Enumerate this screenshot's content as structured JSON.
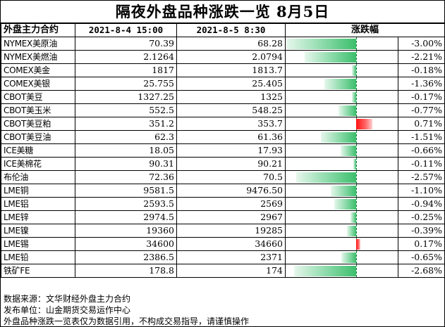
{
  "title": "隔夜外盘品种涨跌一览 8月5日",
  "headers": {
    "name": "外盘主力合约",
    "date1": "2021-8-4 15:00",
    "date2": "2021-8-5 8:30",
    "change": "涨跌幅"
  },
  "colors": {
    "negative_bar": "#3cbf6c",
    "positive_bar": "#ff1010"
  },
  "rows": [
    {
      "name": "NYMEX美原油",
      "prev": "70.39",
      "curr": "68.28",
      "pct": "-3.00%",
      "value": -3.0
    },
    {
      "name": "NYMEX美燃油",
      "prev": "2.1264",
      "curr": "2.0794",
      "pct": "-2.21%",
      "value": -2.21
    },
    {
      "name": "COMEX美金",
      "prev": "1817",
      "curr": "1813.7",
      "pct": "-0.18%",
      "value": -0.18
    },
    {
      "name": "COMEX美银",
      "prev": "25.755",
      "curr": "25.405",
      "pct": "-1.36%",
      "value": -1.36
    },
    {
      "name": "CBOT美豆",
      "prev": "1327.25",
      "curr": "1325",
      "pct": "-0.17%",
      "value": -0.17
    },
    {
      "name": "CBOT美玉米",
      "prev": "552.5",
      "curr": "548.25",
      "pct": "-0.77%",
      "value": -0.77
    },
    {
      "name": "CBOT美豆粕",
      "prev": "351.2",
      "curr": "353.7",
      "pct": "0.71%",
      "value": 0.71
    },
    {
      "name": "CBOT美豆油",
      "prev": "62.3",
      "curr": "61.36",
      "pct": "-1.51%",
      "value": -1.51
    },
    {
      "name": "ICE美糖",
      "prev": "18.05",
      "curr": "17.93",
      "pct": "-0.66%",
      "value": -0.66
    },
    {
      "name": "ICE美棉花",
      "prev": "90.31",
      "curr": "90.21",
      "pct": "-0.11%",
      "value": -0.11
    },
    {
      "name": "布伦油",
      "prev": "72.36",
      "curr": "70.5",
      "pct": "-2.57%",
      "value": -2.57
    },
    {
      "name": "LME铜",
      "prev": "9581.5",
      "curr": "9476.50",
      "pct": "-1.10%",
      "value": -1.1
    },
    {
      "name": "LME铝",
      "prev": "2593.5",
      "curr": "2569",
      "pct": "-0.94%",
      "value": -0.94
    },
    {
      "name": "LME锌",
      "prev": "2974.5",
      "curr": "2967",
      "pct": "-0.25%",
      "value": -0.25
    },
    {
      "name": "LME镍",
      "prev": "19360",
      "curr": "19285",
      "pct": "-0.39%",
      "value": -0.39
    },
    {
      "name": "LME锡",
      "prev": "34600",
      "curr": "34660",
      "pct": "0.17%",
      "value": 0.17
    },
    {
      "name": "LME铅",
      "prev": "2386.5",
      "curr": "2371",
      "pct": "-0.65%",
      "value": -0.65
    },
    {
      "name": "铁矿FE",
      "prev": "178.8",
      "curr": "174",
      "pct": "-2.68%",
      "value": -2.68
    }
  ],
  "footer": {
    "source": "数据来源：文华财经外盘主力合约",
    "publisher": "发布单位：山金期货交易运作中心",
    "disclaimer": "外盘品种涨跌一览表仅为数据引用，不构成交易指导，请谨慎操作"
  }
}
